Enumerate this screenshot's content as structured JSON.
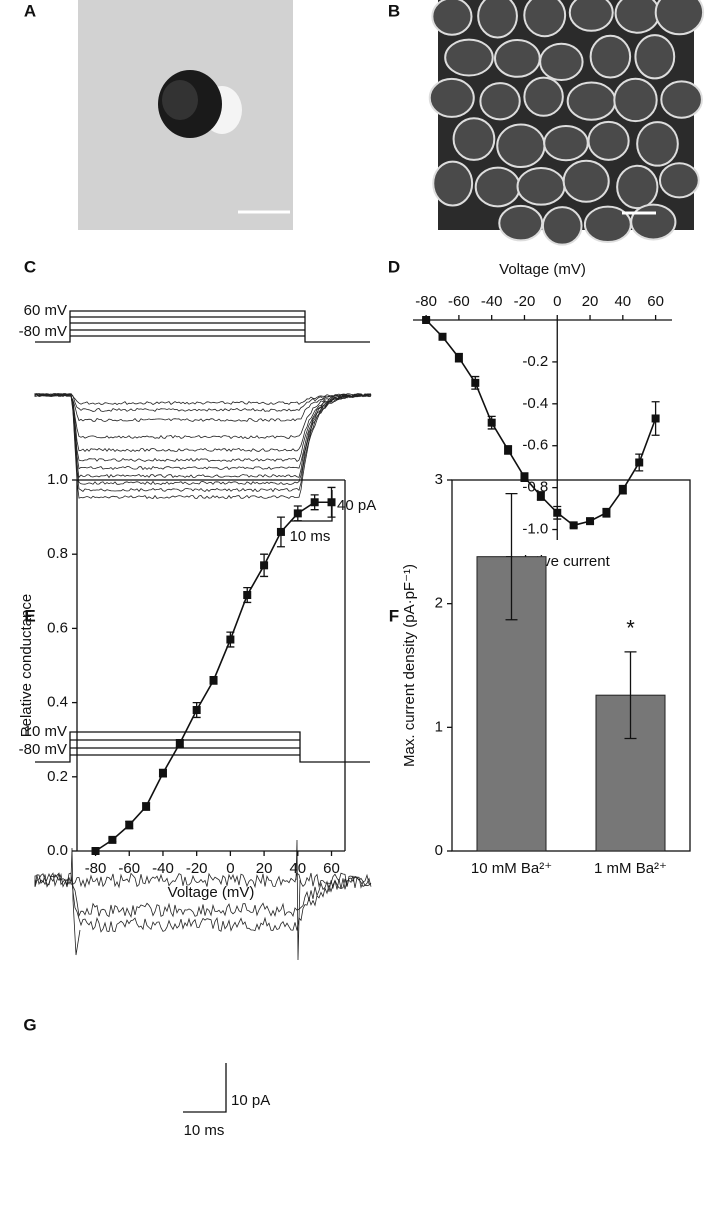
{
  "panel_labels": [
    "A",
    "B",
    "C",
    "D",
    "E",
    "F",
    "G"
  ],
  "trace_c": {
    "step_top": "60 mV",
    "step_bottom": "-80 mV",
    "scale_current": "40 pA",
    "scale_time": "10 ms"
  },
  "trace_g": {
    "step_top": "10 mV",
    "step_bottom": "-80 mV",
    "scale_current": "10 pA",
    "scale_time": "10 ms"
  },
  "chart_data": [
    {
      "type": "line",
      "x_label": "Voltage (mV)",
      "y_label": "Relative current",
      "x_axis_position": "top",
      "y_axis_at_zero": true,
      "x": [
        -80,
        -70,
        -60,
        -50,
        -40,
        -30,
        -20,
        -10,
        0,
        10,
        20,
        30,
        40,
        50,
        60
      ],
      "values": [
        0,
        -0.08,
        -0.18,
        -0.3,
        -0.49,
        -0.62,
        -0.75,
        -0.84,
        -0.92,
        -0.98,
        -0.96,
        -0.92,
        -0.81,
        -0.68,
        -0.47
      ],
      "errors": [
        0.005,
        0.01,
        0.02,
        0.03,
        0.03,
        0.02,
        0.02,
        0.02,
        0.03,
        0.01,
        0.01,
        0.02,
        0.02,
        0.04,
        0.08
      ],
      "color": "#111111",
      "xlim": [
        -88,
        70
      ],
      "ylim": [
        -1.05,
        0
      ],
      "xticks": [
        -80,
        -60,
        -40,
        -20,
        0,
        20,
        40,
        60
      ],
      "yticks": [
        -0.2,
        -0.4,
        -0.6,
        -0.8,
        {
          "value": -1,
          "label": "-1.0"
        }
      ]
    },
    {
      "type": "line",
      "x_label": "Voltage (mV)",
      "y_label": "Relative conductance",
      "x": [
        -80,
        -70,
        -60,
        -50,
        -40,
        -30,
        -20,
        -10,
        0,
        10,
        20,
        30,
        40,
        50,
        60
      ],
      "values": [
        0,
        0.03,
        0.07,
        0.12,
        0.21,
        0.29,
        0.38,
        0.46,
        0.57,
        0.69,
        0.77,
        0.86,
        0.91,
        0.94,
        0.94
      ],
      "errors": [
        0.005,
        0.005,
        0.01,
        0.01,
        0.01,
        0.01,
        0.02,
        0.01,
        0.02,
        0.02,
        0.03,
        0.04,
        0.02,
        0.02,
        0.04
      ],
      "color": "#111111",
      "xlim": [
        -91,
        68
      ],
      "ylim": [
        0,
        1
      ],
      "xticks": [
        -80,
        -60,
        -40,
        -20,
        0,
        20,
        40,
        60
      ],
      "yticks": [
        {
          "value": 0,
          "label": "0.0"
        },
        0.2,
        0.4,
        0.6,
        0.8,
        {
          "value": 1,
          "label": "1.0"
        }
      ]
    },
    {
      "type": "bar",
      "y_label": "Max. current density (pA·pF⁻¹)",
      "categories": [
        "10 mM Ba²⁺",
        "1 mM Ba²⁺"
      ],
      "values": [
        2.38,
        1.26
      ],
      "errors": [
        0.51,
        0.35
      ],
      "annotations": [
        {
          "text": "*",
          "category": 1
        }
      ],
      "color": "#777777",
      "ylim": [
        0,
        3
      ],
      "yticks": [
        0,
        1,
        2,
        3
      ]
    }
  ]
}
